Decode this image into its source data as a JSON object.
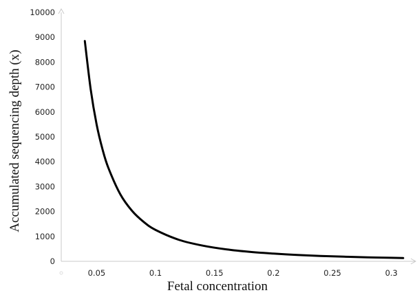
{
  "chart_data": {
    "type": "line",
    "xlabel": "Fetal concentration",
    "ylabel": "Accumulated sequencing depth (x)",
    "xlim": [
      0.02,
      0.32
    ],
    "ylim": [
      0,
      10000
    ],
    "x_ticks": [
      0.05,
      0.1,
      0.15,
      0.2,
      0.25,
      0.3
    ],
    "x_tick_labels": [
      "0.05",
      "0.1",
      "0.15",
      "0.2",
      "0.25",
      "0.3"
    ],
    "y_ticks": [
      0,
      1000,
      2000,
      3000,
      4000,
      5000,
      6000,
      7000,
      8000,
      9000,
      10000
    ],
    "y_tick_labels": [
      "0",
      "1000",
      "2000",
      "3000",
      "4000",
      "5000",
      "6000",
      "7000",
      "8000",
      "9000",
      "10000"
    ],
    "grid": false,
    "series": [
      {
        "color": "#000000",
        "x": [
          0.04,
          0.045,
          0.05,
          0.055,
          0.06,
          0.07,
          0.08,
          0.09,
          0.1,
          0.12,
          0.14,
          0.16,
          0.18,
          0.2,
          0.22,
          0.24,
          0.26,
          0.28,
          0.3,
          0.31
        ],
        "y": [
          8850,
          6900,
          5500,
          4500,
          3750,
          2700,
          2030,
          1580,
          1260,
          860,
          630,
          480,
          380,
          310,
          255,
          215,
          185,
          160,
          140,
          130
        ]
      }
    ]
  }
}
